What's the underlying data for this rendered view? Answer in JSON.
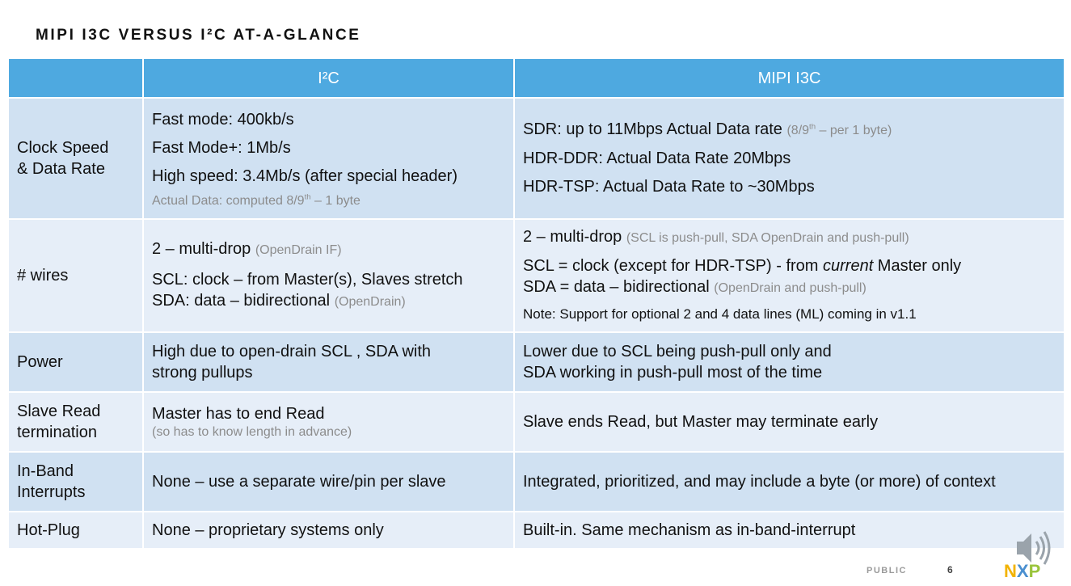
{
  "title": "MIPI I3C VERSUS I²C AT-A-GLANCE",
  "header": {
    "col_empty": "",
    "col_i2c": "I²C",
    "col_i3c": "MIPI I3C"
  },
  "rows": {
    "clock": {
      "label": "Clock Speed & Data Rate",
      "i2c": [
        "Fast mode: 400kb/s",
        "Fast Mode+: 1Mb/s",
        "High speed: 3.4Mb/s (after special header)"
      ],
      "i2c_note_a": "Actual Data: computed 8/9",
      "i2c_note_sup": "th",
      "i2c_note_b": " – 1 byte",
      "i3c_sdr": "SDR: up to 11Mbps Actual Data rate ",
      "i3c_sdr_note_a": "(8/9",
      "i3c_sdr_note_sup": "th",
      "i3c_sdr_note_b": " – per 1 byte)",
      "i3c_ddr": "HDR-DDR: Actual Data Rate 20Mbps",
      "i3c_tsp": "HDR-TSP:  Actual Data Rate to ~30Mbps"
    },
    "wires": {
      "label": "# wires",
      "i2c_line1": "2 – multi-drop  ",
      "i2c_line1_note": "(OpenDrain IF)",
      "i2c_line2": "SCL: clock – from Master(s), Slaves stretch",
      "i2c_line3": "SDA: data – bidirectional ",
      "i2c_line3_note": "(OpenDrain)",
      "i3c_line1": "2 – multi-drop ",
      "i3c_line1_note": "(SCL is push-pull, SDA OpenDrain and push-pull)",
      "i3c_line2a": "SCL = clock (except for HDR-TSP) - from ",
      "i3c_line2_em": "current",
      "i3c_line2b": " Master only",
      "i3c_line3": "SDA = data – bidirectional ",
      "i3c_line3_note": "(OpenDrain and push-pull)",
      "i3c_line4": "Note: Support for optional 2 and 4 data lines (ML) coming in v1.1"
    },
    "power": {
      "label": "Power",
      "i2c_line1": "High due to open-drain SCL , SDA with",
      "i2c_line2": "strong pullups",
      "i3c_line1": "Lower due to SCL being push-pull only and",
      "i3c_line2": "SDA working in push-pull most of the time"
    },
    "read": {
      "label_line1": "Slave Read",
      "label_line2": "termination",
      "i2c": "Master has to end Read",
      "i2c_note": "(so has to know length in advance)",
      "i3c": "Slave ends Read, but Master may terminate early"
    },
    "ibi": {
      "label_line1": "In-Band",
      "label_line2": "Interrupts",
      "i2c": "None – use a separate wire/pin per slave",
      "i3c": "Integrated, prioritized, and may include a byte (or more) of context"
    },
    "hotplug": {
      "label": "Hot-Plug",
      "i2c": "None – proprietary systems only",
      "i3c": "Built-in. Same mechanism as in-band-interrupt"
    }
  },
  "footer": {
    "classification": "PUBLIC",
    "page": "6"
  },
  "logo": {
    "text": "NXP"
  },
  "colors": {
    "header": "#4ea9e0",
    "row_dark": "#d0e1f2",
    "row_light": "#e6eef8",
    "note_gray": "#8c8c8c"
  }
}
